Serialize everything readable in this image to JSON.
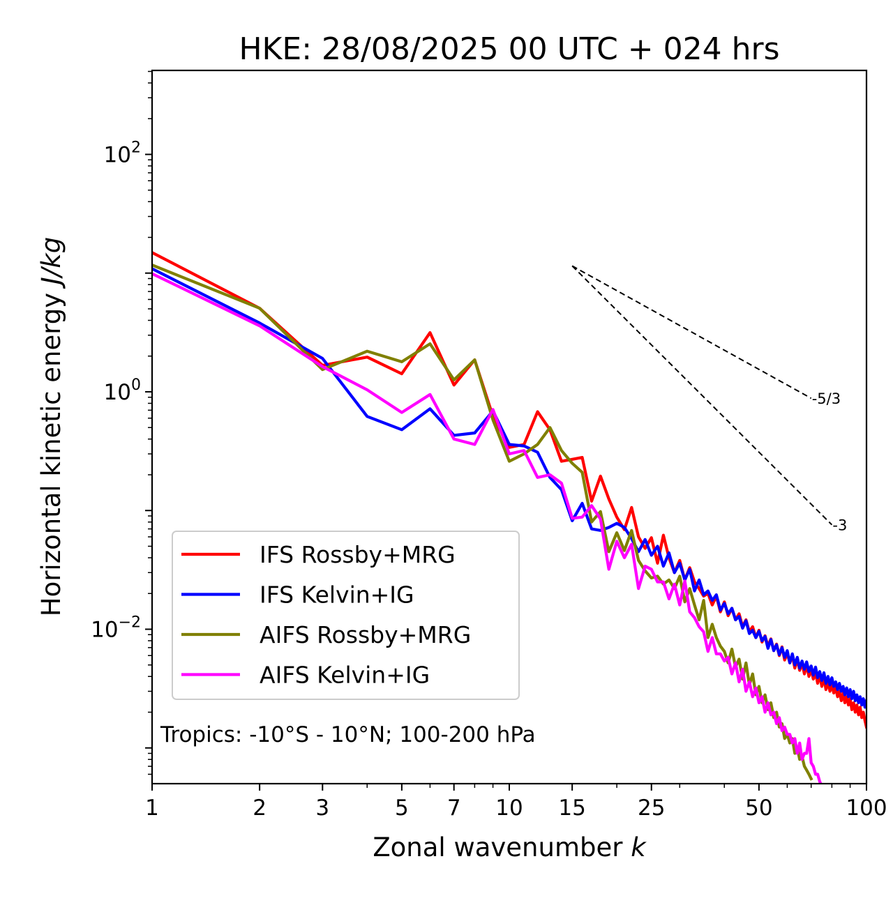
{
  "chart_data": {
    "type": "line",
    "title": "HKE: 28/08/2025 00 UTC + 024 hrs",
    "xlabel": "Zonal wavenumber",
    "xlabel_italic": "k",
    "ylabel": "Horizontal kinetic energy",
    "ylabel_italic": "J/kg",
    "xscale": "log",
    "yscale": "log",
    "xlim": [
      1,
      100
    ],
    "ylim": [
      0.0005,
      510
    ],
    "grid": false,
    "legend_placement": "lower-left",
    "x_ticks": [
      {
        "value": 1,
        "label": "1"
      },
      {
        "value": 2,
        "label": "2"
      },
      {
        "value": 3,
        "label": "3"
      },
      {
        "value": 5,
        "label": "5"
      },
      {
        "value": 7,
        "label": "7"
      },
      {
        "value": 10,
        "label": "10"
      },
      {
        "value": 15,
        "label": "15"
      },
      {
        "value": 25,
        "label": "25"
      },
      {
        "value": 50,
        "label": "50"
      },
      {
        "value": 100,
        "label": "100"
      }
    ],
    "y_ticks": [
      {
        "value": 100,
        "base": "10",
        "exp": "2"
      },
      {
        "value": 1,
        "base": "10",
        "exp": "0"
      },
      {
        "value": 0.01,
        "base": "10",
        "exp": "−2"
      }
    ],
    "annotation": "Tropics: -10°S - 10°N; 100-200 hPa",
    "reference_slopes": [
      {
        "label": "-5/3",
        "slope": -1.6667,
        "k_start": 15,
        "k_end": 70,
        "e_start": 11.5
      },
      {
        "label": "-3",
        "slope": -3,
        "k_start": 15,
        "k_end": 80,
        "e_start": 11.5
      }
    ],
    "series": [
      {
        "name": "IFS Rossby+MRG",
        "color": "#ff0000",
        "x": [
          1,
          2,
          3,
          4,
          5,
          6,
          7,
          8,
          9,
          10,
          11,
          12,
          13,
          14,
          15,
          16,
          17,
          18,
          19,
          20,
          21,
          22,
          23,
          24,
          25,
          26,
          27,
          28,
          29,
          30,
          31,
          32,
          33,
          34,
          35,
          36,
          37,
          38,
          39,
          40,
          41,
          42,
          43,
          44,
          45,
          46,
          47,
          48,
          49,
          50,
          51,
          52,
          53,
          54,
          55,
          56,
          57,
          58,
          59,
          60,
          61,
          62,
          63,
          64,
          65,
          66,
          67,
          68,
          69,
          70,
          71,
          72,
          73,
          74,
          75,
          76,
          77,
          78,
          79,
          80,
          81,
          82,
          83,
          84,
          85,
          86,
          87,
          88,
          89,
          90,
          91,
          92,
          93,
          94,
          95,
          96,
          97,
          98,
          99,
          100
        ],
        "y": [
          14.9,
          5.06,
          1.67,
          1.96,
          1.42,
          3.15,
          1.14,
          1.86,
          0.62,
          0.34,
          0.36,
          0.68,
          0.48,
          0.26,
          0.27,
          0.28,
          0.12,
          0.195,
          0.125,
          0.088,
          0.069,
          0.106,
          0.06,
          0.048,
          0.059,
          0.036,
          0.062,
          0.04,
          0.03,
          0.038,
          0.026,
          0.033,
          0.025,
          0.022,
          0.019,
          0.02,
          0.016,
          0.019,
          0.014,
          0.017,
          0.013,
          0.015,
          0.012,
          0.0135,
          0.0105,
          0.012,
          0.0095,
          0.0105,
          0.0085,
          0.0098,
          0.0078,
          0.0088,
          0.0072,
          0.0083,
          0.0066,
          0.0075,
          0.006,
          0.0071,
          0.0055,
          0.0063,
          0.0052,
          0.006,
          0.0047,
          0.0056,
          0.0045,
          0.0052,
          0.0042,
          0.005,
          0.004,
          0.0046,
          0.0038,
          0.0043,
          0.0035,
          0.0041,
          0.0033,
          0.0039,
          0.0031,
          0.0036,
          0.003,
          0.0034,
          0.0029,
          0.0032,
          0.0027,
          0.003,
          0.0025,
          0.0029,
          0.0024,
          0.0027,
          0.0023,
          0.0026,
          0.0021,
          0.0024,
          0.002,
          0.0023,
          0.0019,
          0.0022,
          0.0018,
          0.002,
          0.0017,
          0.0015
        ]
      },
      {
        "name": "IFS Kelvin+IG",
        "color": "#0000ff",
        "x": [
          1,
          2,
          3,
          4,
          5,
          6,
          7,
          8,
          9,
          10,
          11,
          12,
          13,
          14,
          15,
          16,
          17,
          18,
          19,
          20,
          21,
          22,
          23,
          24,
          25,
          26,
          27,
          28,
          29,
          30,
          31,
          32,
          33,
          34,
          35,
          36,
          37,
          38,
          39,
          40,
          41,
          42,
          43,
          44,
          45,
          46,
          47,
          48,
          49,
          50,
          51,
          52,
          53,
          54,
          55,
          56,
          57,
          58,
          59,
          60,
          61,
          62,
          63,
          64,
          65,
          66,
          67,
          68,
          69,
          70,
          71,
          72,
          73,
          74,
          75,
          76,
          77,
          78,
          79,
          80,
          81,
          82,
          83,
          84,
          85,
          86,
          87,
          88,
          89,
          90,
          91,
          92,
          93,
          94,
          95,
          96,
          97,
          98,
          99,
          100
        ],
        "y": [
          10.9,
          3.8,
          1.91,
          0.62,
          0.48,
          0.72,
          0.43,
          0.45,
          0.69,
          0.36,
          0.35,
          0.31,
          0.19,
          0.15,
          0.082,
          0.115,
          0.07,
          0.068,
          0.072,
          0.078,
          0.072,
          0.058,
          0.045,
          0.057,
          0.042,
          0.05,
          0.034,
          0.044,
          0.03,
          0.036,
          0.026,
          0.032,
          0.021,
          0.026,
          0.0195,
          0.021,
          0.0175,
          0.0195,
          0.0145,
          0.0165,
          0.0135,
          0.015,
          0.012,
          0.0128,
          0.0102,
          0.0118,
          0.0092,
          0.0098,
          0.0085,
          0.0096,
          0.008,
          0.0087,
          0.0069,
          0.0082,
          0.0066,
          0.0074,
          0.0061,
          0.007,
          0.0058,
          0.0066,
          0.0052,
          0.0062,
          0.005,
          0.0058,
          0.0047,
          0.0054,
          0.0046,
          0.0053,
          0.0044,
          0.0049,
          0.0041,
          0.0048,
          0.0039,
          0.0044,
          0.0037,
          0.0043,
          0.0035,
          0.004,
          0.0034,
          0.0039,
          0.0033,
          0.0036,
          0.0031,
          0.0035,
          0.003,
          0.0033,
          0.0028,
          0.0032,
          0.0027,
          0.0031,
          0.0026,
          0.003,
          0.0025,
          0.0028,
          0.0024,
          0.0027,
          0.0023,
          0.0026,
          0.0022,
          0.0025
        ]
      },
      {
        "name": "AIFS Rossby+MRG",
        "color": "#808000",
        "x": [
          1,
          2,
          3,
          4,
          5,
          6,
          7,
          8,
          9,
          10,
          11,
          12,
          13,
          14,
          15,
          16,
          17,
          18,
          19,
          20,
          21,
          22,
          23,
          24,
          25,
          26,
          27,
          28,
          29,
          30,
          31,
          32,
          33,
          34,
          35,
          36,
          37,
          38,
          39,
          40,
          41,
          42,
          43,
          44,
          45,
          46,
          47,
          48,
          49,
          50,
          51,
          52,
          53,
          54,
          55,
          56,
          57,
          58,
          59,
          60,
          61,
          62,
          63,
          64,
          65,
          66,
          67,
          68,
          69,
          70
        ],
        "y": [
          11.7,
          5.06,
          1.54,
          2.2,
          1.79,
          2.54,
          1.26,
          1.86,
          0.58,
          0.26,
          0.3,
          0.36,
          0.5,
          0.32,
          0.25,
          0.21,
          0.08,
          0.098,
          0.045,
          0.065,
          0.046,
          0.068,
          0.038,
          0.031,
          0.027,
          0.028,
          0.024,
          0.026,
          0.022,
          0.028,
          0.017,
          0.022,
          0.016,
          0.012,
          0.0175,
          0.0085,
          0.011,
          0.0085,
          0.0072,
          0.0065,
          0.0052,
          0.0068,
          0.0048,
          0.0056,
          0.0038,
          0.0052,
          0.0034,
          0.0042,
          0.0028,
          0.0033,
          0.0024,
          0.0028,
          0.0021,
          0.0024,
          0.0018,
          0.002,
          0.0015,
          0.0016,
          0.0012,
          0.0013,
          0.0011,
          0.0012,
          0.0009,
          0.001,
          0.0008,
          0.00085,
          0.0007,
          0.00065,
          0.0006,
          0.00055
        ]
      },
      {
        "name": "AIFS Kelvin+IG",
        "color": "#ff00ff",
        "x": [
          1,
          2,
          3,
          4,
          5,
          6,
          7,
          8,
          9,
          10,
          11,
          12,
          13,
          14,
          15,
          16,
          17,
          18,
          19,
          20,
          21,
          22,
          23,
          24,
          25,
          26,
          27,
          28,
          29,
          30,
          31,
          32,
          33,
          34,
          35,
          36,
          37,
          38,
          39,
          40,
          41,
          42,
          43,
          44,
          45,
          46,
          47,
          48,
          49,
          50,
          51,
          52,
          53,
          54,
          55,
          56,
          57,
          58,
          59,
          60,
          61,
          62,
          63,
          64,
          65,
          66,
          67,
          68,
          69,
          70,
          71,
          72,
          73,
          74,
          75
        ],
        "y": [
          9.9,
          3.6,
          1.63,
          1.04,
          0.67,
          0.95,
          0.4,
          0.36,
          0.71,
          0.3,
          0.32,
          0.19,
          0.2,
          0.17,
          0.086,
          0.088,
          0.11,
          0.085,
          0.032,
          0.055,
          0.04,
          0.052,
          0.022,
          0.034,
          0.032,
          0.025,
          0.025,
          0.018,
          0.024,
          0.016,
          0.0255,
          0.014,
          0.0125,
          0.0105,
          0.0095,
          0.0065,
          0.0085,
          0.0062,
          0.0062,
          0.0054,
          0.0058,
          0.0042,
          0.0052,
          0.0036,
          0.0046,
          0.003,
          0.0036,
          0.0027,
          0.0032,
          0.0024,
          0.0027,
          0.002,
          0.0024,
          0.0019,
          0.002,
          0.0016,
          0.0018,
          0.0014,
          0.0015,
          0.0013,
          0.0013,
          0.0011,
          0.0012,
          0.0009,
          0.0011,
          0.0008,
          0.0009,
          0.0009,
          0.0012,
          0.00075,
          0.0007,
          0.0006,
          0.0006,
          0.00052,
          0.00048
        ]
      }
    ]
  }
}
